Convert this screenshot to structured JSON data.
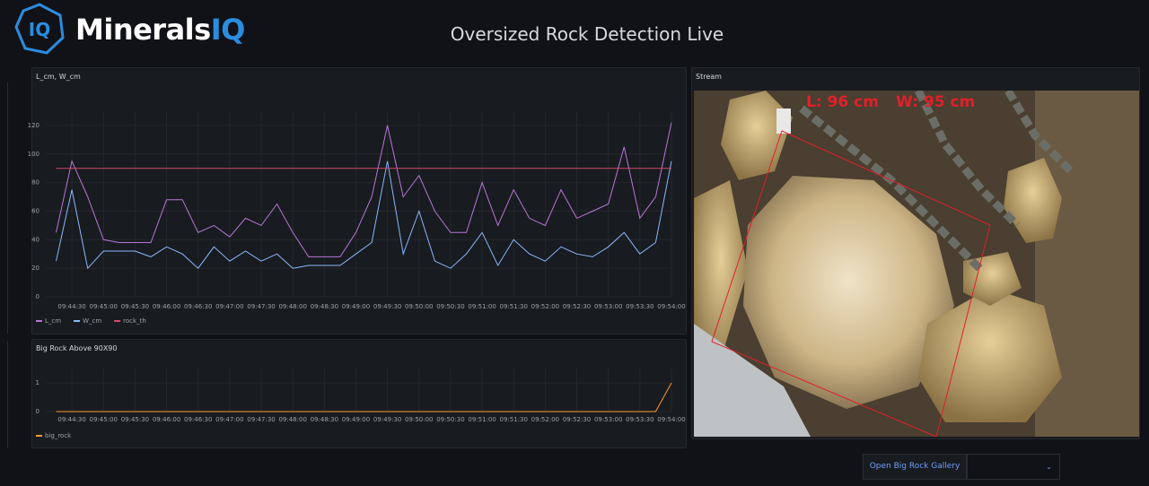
{
  "header": {
    "logo_badge": "IQ",
    "logo_text": "Minerals",
    "logo_accent": "IQ",
    "title": "Oversized Rock Detection Live"
  },
  "chart_data": [
    {
      "type": "line",
      "title": "L_cm, W_cm",
      "x": [
        "09:44:15",
        "09:44:30",
        "09:44:45",
        "09:45:00",
        "09:45:15",
        "09:45:30",
        "09:45:45",
        "09:46:00",
        "09:46:15",
        "09:46:30",
        "09:46:45",
        "09:47:00",
        "09:47:15",
        "09:47:30",
        "09:47:45",
        "09:48:00",
        "09:48:15",
        "09:48:30",
        "09:48:45",
        "09:49:00",
        "09:49:15",
        "09:49:30",
        "09:49:45",
        "09:50:00",
        "09:50:15",
        "09:50:30",
        "09:50:45",
        "09:51:00",
        "09:51:15",
        "09:51:30",
        "09:51:45",
        "09:52:00",
        "09:52:15",
        "09:52:30",
        "09:52:45",
        "09:53:00",
        "09:53:15",
        "09:53:30",
        "09:53:45",
        "09:54:00"
      ],
      "series": [
        {
          "name": "L_cm",
          "color": "#b877d9",
          "values": [
            45,
            95,
            70,
            40,
            38,
            38,
            38,
            68,
            68,
            45,
            50,
            42,
            55,
            50,
            65,
            45,
            28,
            28,
            28,
            45,
            70,
            120,
            70,
            85,
            60,
            45,
            45,
            80,
            50,
            75,
            55,
            50,
            75,
            55,
            60,
            65,
            105,
            55,
            70,
            122
          ]
        },
        {
          "name": "W_cm",
          "color": "#8ab8ff",
          "values": [
            25,
            75,
            20,
            32,
            32,
            32,
            28,
            35,
            30,
            20,
            35,
            25,
            32,
            25,
            30,
            20,
            22,
            22,
            22,
            30,
            38,
            95,
            30,
            60,
            25,
            20,
            30,
            45,
            22,
            40,
            30,
            25,
            35,
            30,
            28,
            35,
            45,
            30,
            38,
            95
          ]
        },
        {
          "name": "rock_th",
          "color": "#d44a6a",
          "values": [
            90,
            90,
            90,
            90,
            90,
            90,
            90,
            90,
            90,
            90,
            90,
            90,
            90,
            90,
            90,
            90,
            90,
            90,
            90,
            90,
            90,
            90,
            90,
            90,
            90,
            90,
            90,
            90,
            90,
            90,
            90,
            90,
            90,
            90,
            90,
            90,
            90,
            90,
            90,
            90
          ]
        }
      ],
      "xlim": [
        "09:44:06",
        "09:54:00"
      ],
      "xticks": [
        "09:44:30",
        "09:45:00",
        "09:45:30",
        "09:46:00",
        "09:46:30",
        "09:47:00",
        "09:47:30",
        "09:48:00",
        "09:48:30",
        "09:49:00",
        "09:49:30",
        "09:50:00",
        "09:50:30",
        "09:51:00",
        "09:51:30",
        "09:52:00",
        "09:52:30",
        "09:53:00",
        "09:53:30",
        "09:54:00"
      ],
      "ylim": [
        0,
        130
      ],
      "yticks": [
        0,
        20,
        40,
        60,
        80,
        100,
        120
      ],
      "grid": true
    },
    {
      "type": "line",
      "title": "Big Rock Above 90X90",
      "x": [
        "09:44:15",
        "09:44:30",
        "09:44:45",
        "09:45:00",
        "09:45:15",
        "09:45:30",
        "09:45:45",
        "09:46:00",
        "09:46:15",
        "09:46:30",
        "09:46:45",
        "09:47:00",
        "09:47:15",
        "09:47:30",
        "09:47:45",
        "09:48:00",
        "09:48:15",
        "09:48:30",
        "09:48:45",
        "09:49:00",
        "09:49:15",
        "09:49:30",
        "09:49:45",
        "09:50:00",
        "09:50:15",
        "09:50:30",
        "09:50:45",
        "09:51:00",
        "09:51:15",
        "09:51:30",
        "09:51:45",
        "09:52:00",
        "09:52:15",
        "09:52:30",
        "09:52:45",
        "09:53:00",
        "09:53:15",
        "09:53:30",
        "09:53:45",
        "09:54:00"
      ],
      "series": [
        {
          "name": "big_rock",
          "color": "#ff9830",
          "values": [
            0,
            0,
            0,
            0,
            0,
            0,
            0,
            0,
            0,
            0,
            0,
            0,
            0,
            0,
            0,
            0,
            0,
            0,
            0,
            0,
            0,
            0,
            0,
            0,
            0,
            0,
            0,
            0,
            0,
            0,
            0,
            0,
            0,
            0,
            0,
            0,
            0,
            0,
            0,
            1
          ]
        }
      ],
      "xlim": [
        "09:44:06",
        "09:54:00"
      ],
      "xticks": [
        "09:44:30",
        "09:45:00",
        "09:45:30",
        "09:46:00",
        "09:46:30",
        "09:47:00",
        "09:47:30",
        "09:48:00",
        "09:48:30",
        "09:49:00",
        "09:49:30",
        "09:50:00",
        "09:50:30",
        "09:51:00",
        "09:51:30",
        "09:52:00",
        "09:52:30",
        "09:53:00",
        "09:53:30",
        "09:54:00"
      ],
      "ylim": [
        0,
        1.5
      ],
      "yticks": [
        0,
        1
      ],
      "grid": true
    }
  ],
  "stream": {
    "title": "Stream",
    "overlay_length": "L: 96 cm",
    "overlay_width": "W: 95 cm"
  },
  "button": {
    "label": "Open Big Rock Gallery"
  }
}
